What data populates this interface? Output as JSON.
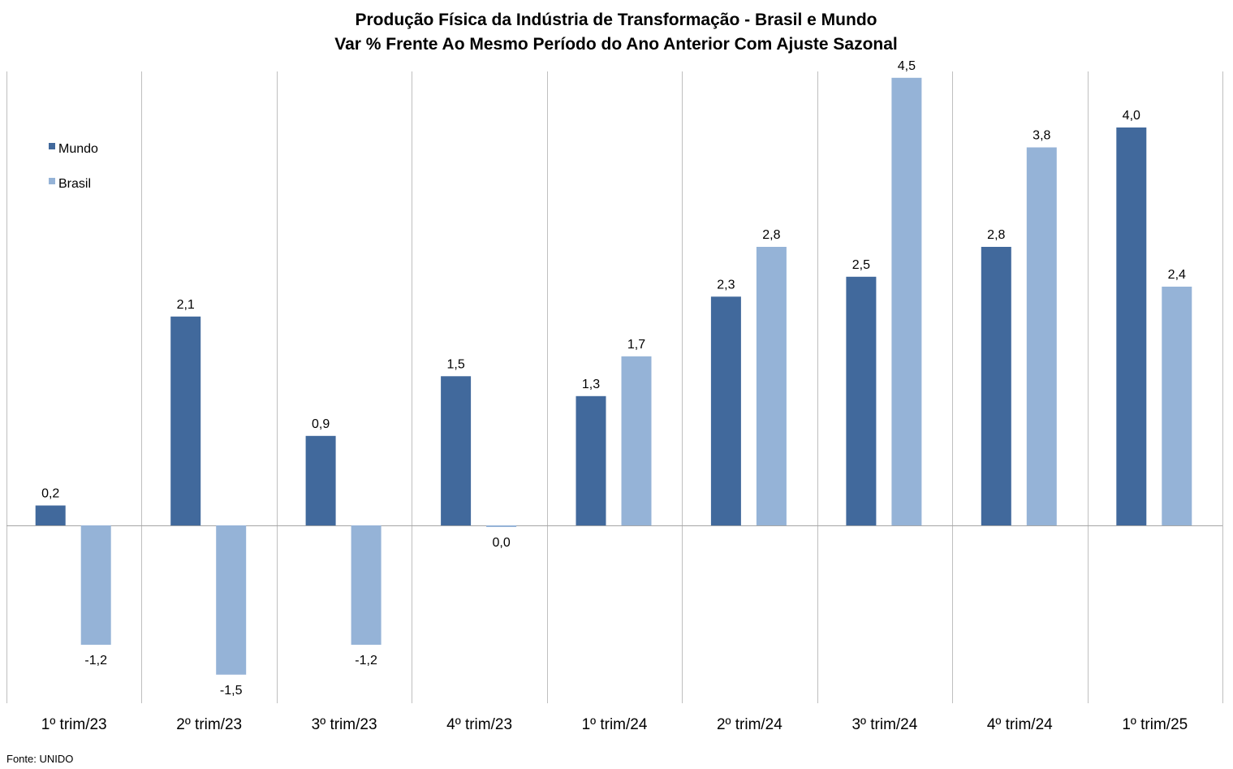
{
  "chart_data": {
    "type": "bar",
    "title": "Produção Física da Indústria de Transformação - Brasil e Mundo",
    "subtitle": "Var % Frente Ao Mesmo Período do Ano Anterior Com Ajuste Sazonal",
    "categories": [
      "1º trim/23",
      "2º trim/23",
      "3º trim/23",
      "4º trim/23",
      "1º trim/24",
      "2º trim/24",
      "3º trim/24",
      "4º trim/24",
      "1º trim/25"
    ],
    "series": [
      {
        "name": "Mundo",
        "color": "#41699C",
        "values": [
          0.2,
          2.1,
          0.9,
          1.5,
          1.3,
          2.3,
          2.5,
          2.8,
          4.0
        ],
        "labels": [
          "0,2",
          "2,1",
          "0,9",
          "1,5",
          "1,3",
          "2,3",
          "2,5",
          "2,8",
          "4,0"
        ]
      },
      {
        "name": "Brasil",
        "color": "#95B3D7",
        "values": [
          -1.2,
          -1.5,
          -1.2,
          0.0,
          1.7,
          2.8,
          4.5,
          3.8,
          2.4
        ],
        "labels": [
          "-1,2",
          "-1,5",
          "-1,2",
          "0,0",
          "1,7",
          "2,8",
          "4,5",
          "3,8",
          "2,4"
        ]
      }
    ],
    "ylim": [
      -1.8,
      4.5
    ],
    "grid": "vertical",
    "legend": "top-left",
    "source": "Fonte: UNIDO"
  }
}
